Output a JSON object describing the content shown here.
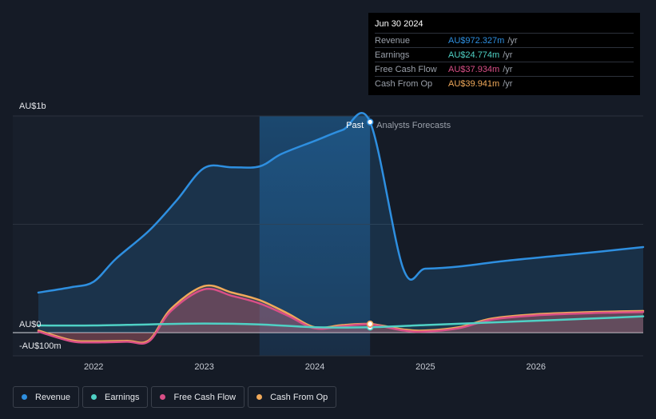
{
  "chart_data": {
    "type": "line",
    "y_axis_labels": [
      "AU$1b",
      "AU$0",
      "-AU$100m"
    ],
    "x_tick_labels": [
      "2022",
      "2023",
      "2024",
      "2025",
      "2026"
    ],
    "xlim": [
      2021.5,
      2026.97
    ],
    "ylim": [
      -100,
      1000
    ],
    "past_label": "Past",
    "forecast_label": "Analysts Forecasts",
    "past_end": 2024.5,
    "highlight_start": 2023.5,
    "series": [
      {
        "name": "Revenue",
        "color": "#2e8fe0",
        "points": [
          [
            2021.5,
            185
          ],
          [
            2021.8,
            210
          ],
          [
            2022.0,
            235
          ],
          [
            2022.2,
            340
          ],
          [
            2022.5,
            470
          ],
          [
            2022.75,
            610
          ],
          [
            2023.0,
            760
          ],
          [
            2023.25,
            763
          ],
          [
            2023.5,
            767
          ],
          [
            2023.7,
            825
          ],
          [
            2024.0,
            885
          ],
          [
            2024.25,
            935
          ],
          [
            2024.5,
            972
          ],
          [
            2024.8,
            295
          ],
          [
            2025.0,
            295
          ],
          [
            2025.3,
            305
          ],
          [
            2025.7,
            330
          ],
          [
            2026.2,
            355
          ],
          [
            2026.6,
            375
          ],
          [
            2026.97,
            395
          ]
        ]
      },
      {
        "name": "Earnings",
        "color": "#4fd1c5",
        "points": [
          [
            2021.5,
            33
          ],
          [
            2022.0,
            33
          ],
          [
            2022.5,
            38
          ],
          [
            2023.0,
            42
          ],
          [
            2023.5,
            38
          ],
          [
            2024.0,
            25
          ],
          [
            2024.5,
            25
          ],
          [
            2025.0,
            35
          ],
          [
            2025.5,
            45
          ],
          [
            2026.0,
            55
          ],
          [
            2026.5,
            65
          ],
          [
            2026.97,
            75
          ]
        ]
      },
      {
        "name": "Free Cash Flow",
        "color": "#d94f87",
        "points": [
          [
            2021.5,
            5
          ],
          [
            2021.8,
            -40
          ],
          [
            2022.0,
            -45
          ],
          [
            2022.3,
            -42
          ],
          [
            2022.5,
            -40
          ],
          [
            2022.7,
            100
          ],
          [
            2023.0,
            200
          ],
          [
            2023.25,
            170
          ],
          [
            2023.5,
            135
          ],
          [
            2023.75,
            80
          ],
          [
            2024.0,
            20
          ],
          [
            2024.25,
            30
          ],
          [
            2024.5,
            38
          ],
          [
            2024.8,
            10
          ],
          [
            2025.0,
            5
          ],
          [
            2025.3,
            20
          ],
          [
            2025.6,
            60
          ],
          [
            2026.0,
            80
          ],
          [
            2026.5,
            90
          ],
          [
            2026.97,
            95
          ]
        ]
      },
      {
        "name": "Cash From Op",
        "color": "#f0a95a",
        "points": [
          [
            2021.5,
            10
          ],
          [
            2021.8,
            -35
          ],
          [
            2022.0,
            -40
          ],
          [
            2022.3,
            -38
          ],
          [
            2022.5,
            -35
          ],
          [
            2022.7,
            110
          ],
          [
            2023.0,
            215
          ],
          [
            2023.25,
            185
          ],
          [
            2023.5,
            150
          ],
          [
            2023.75,
            90
          ],
          [
            2024.0,
            25
          ],
          [
            2024.25,
            35
          ],
          [
            2024.5,
            40
          ],
          [
            2024.8,
            15
          ],
          [
            2025.0,
            10
          ],
          [
            2025.3,
            25
          ],
          [
            2025.6,
            65
          ],
          [
            2026.0,
            85
          ],
          [
            2026.5,
            95
          ],
          [
            2026.97,
            100
          ]
        ]
      }
    ]
  },
  "tooltip": {
    "date": "Jun 30 2024",
    "rows": [
      {
        "name": "Revenue",
        "value": "AU$972.327m",
        "unit": "/yr",
        "color": "#2e8fe0"
      },
      {
        "name": "Earnings",
        "value": "AU$24.774m",
        "unit": "/yr",
        "color": "#4fd1c5"
      },
      {
        "name": "Free Cash Flow",
        "value": "AU$37.934m",
        "unit": "/yr",
        "color": "#d94f87"
      },
      {
        "name": "Cash From Op",
        "value": "AU$39.941m",
        "unit": "/yr",
        "color": "#f0a95a"
      }
    ]
  },
  "legend": [
    {
      "label": "Revenue",
      "color": "#2e8fe0"
    },
    {
      "label": "Earnings",
      "color": "#4fd1c5"
    },
    {
      "label": "Free Cash Flow",
      "color": "#d94f87"
    },
    {
      "label": "Cash From Op",
      "color": "#f0a95a"
    }
  ]
}
